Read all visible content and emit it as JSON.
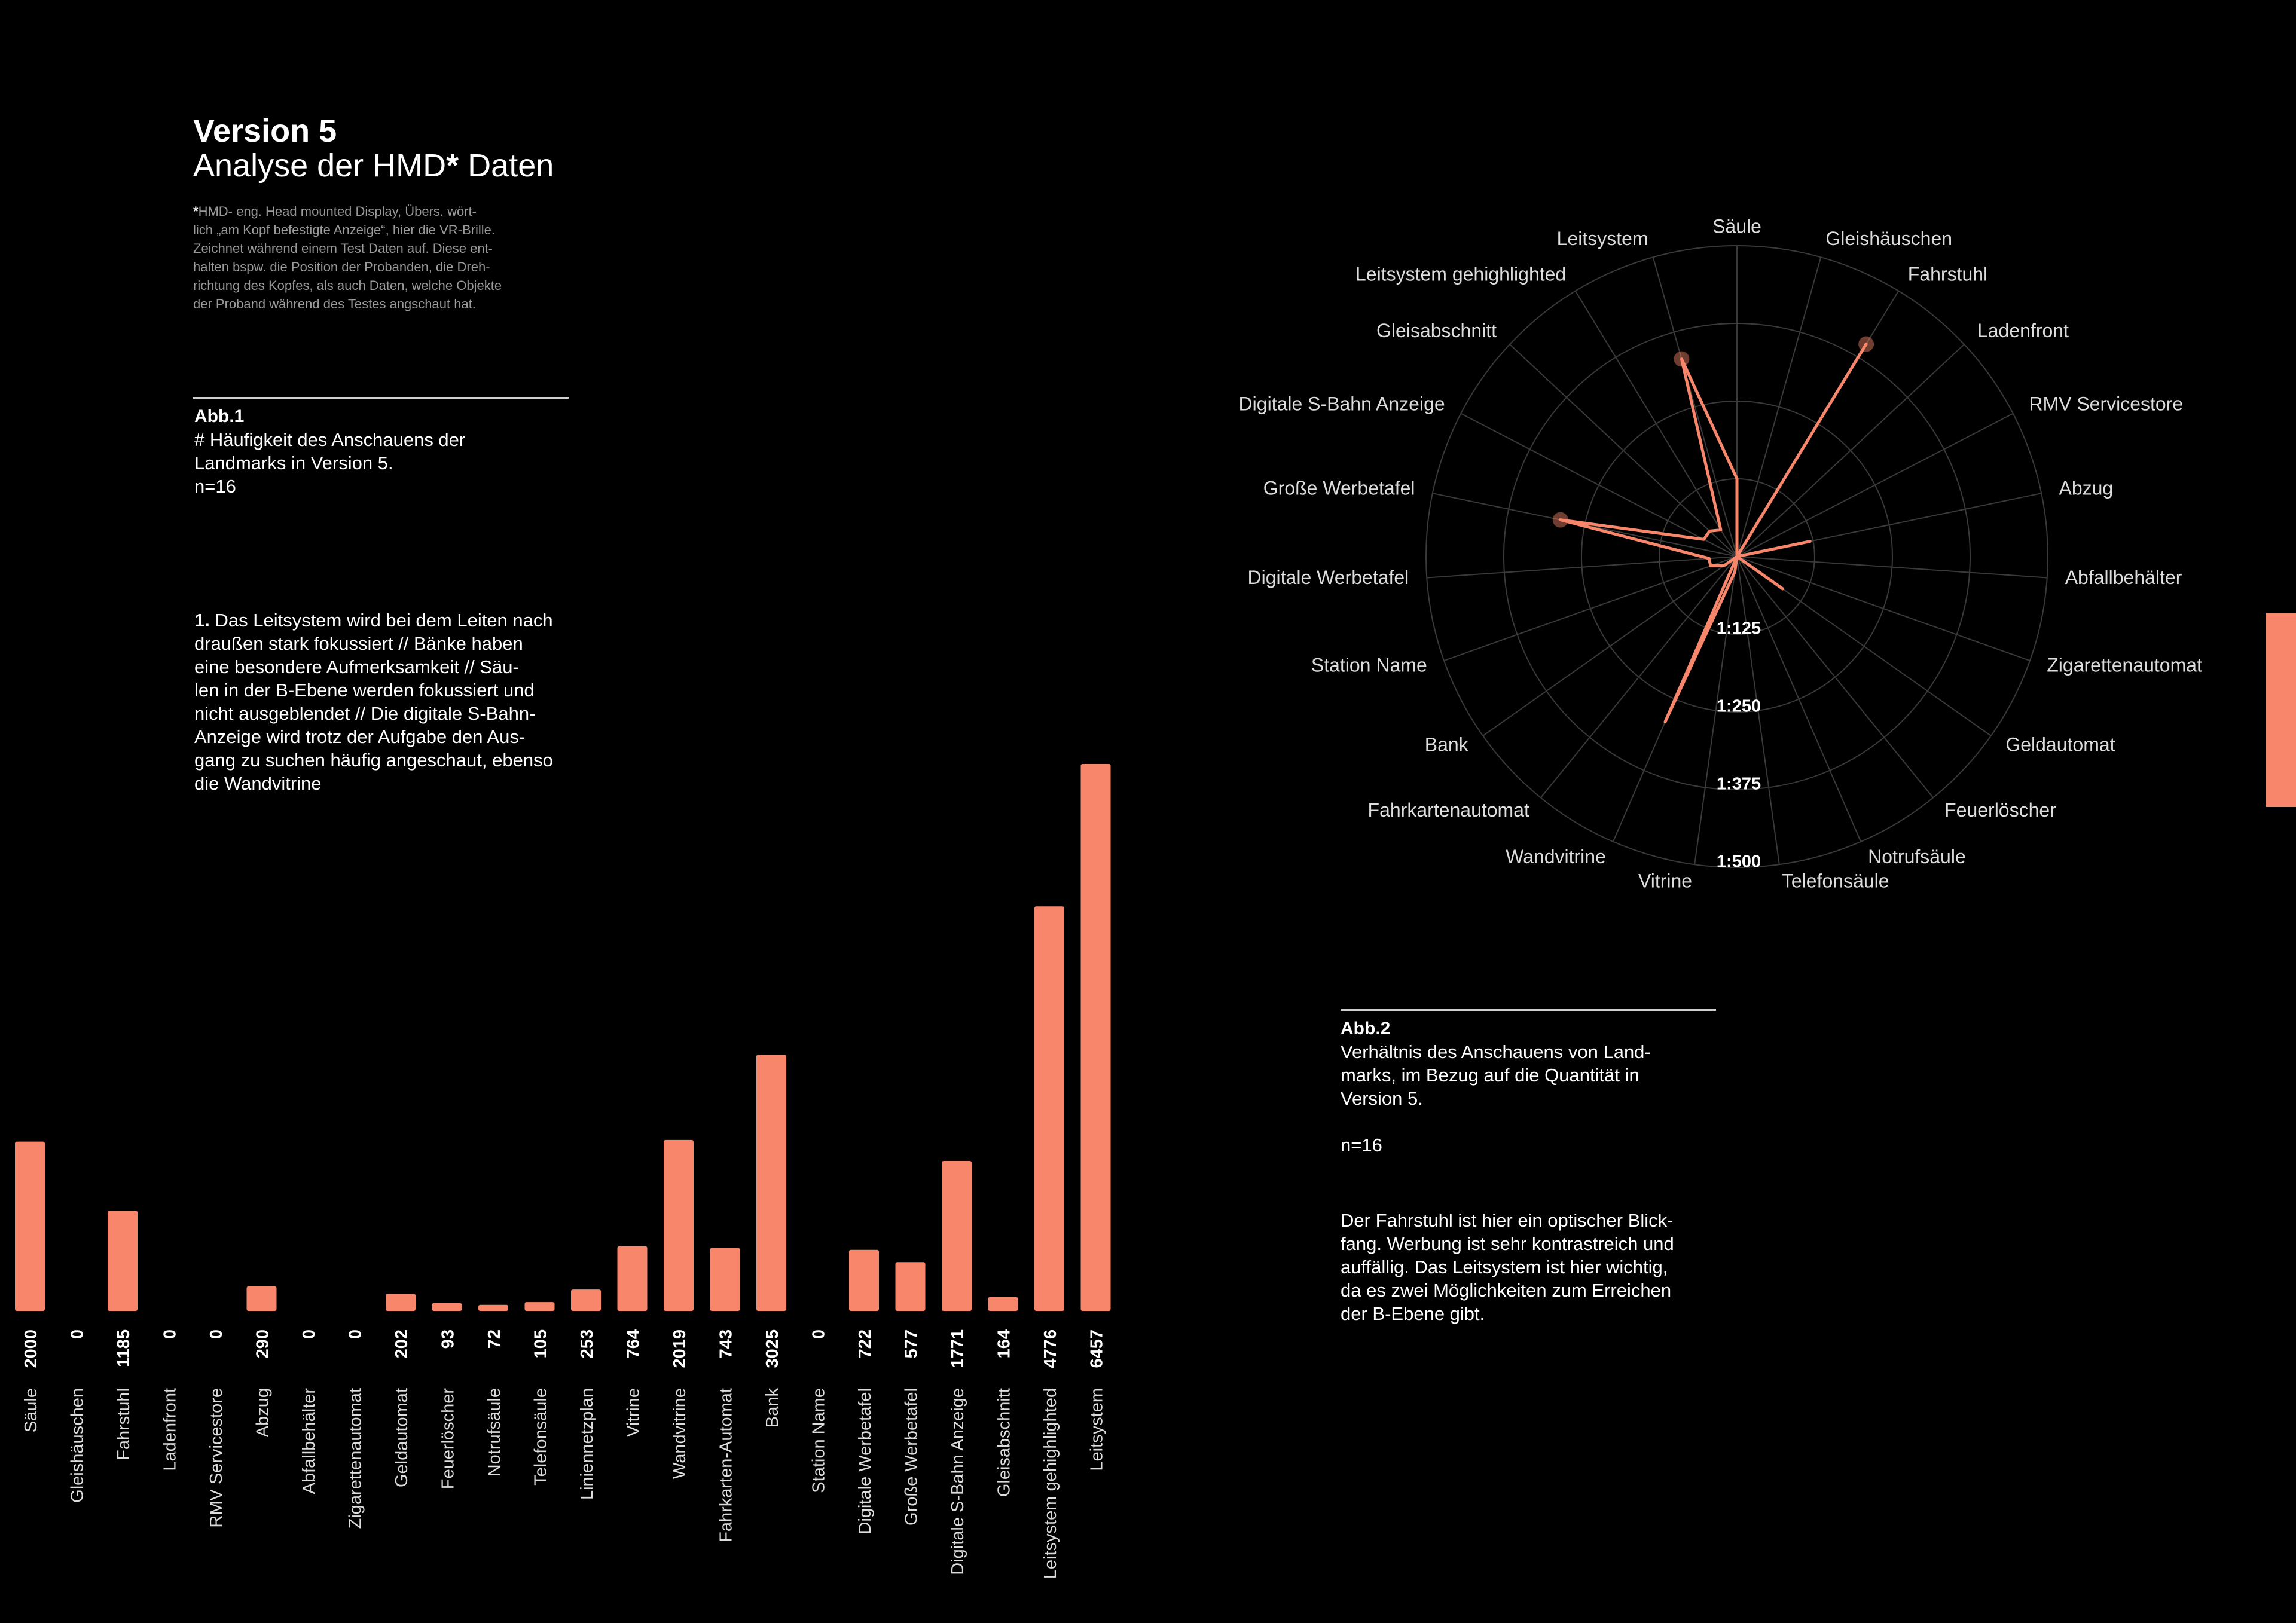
{
  "page": {
    "title": "Version 5",
    "subtitle_pre": "Analyse der HMD",
    "subtitle_star": "*",
    "subtitle_post": " Daten",
    "footnote_star": "*",
    "footnote": "HMD- eng. Head mounted Display, Übers. wört-\nlich „am Kopf befestigte Anzeige“, hier die VR-Brille.\nZeichnet während einem Test Daten auf. Diese ent-\nhalten bspw. die Position der Probanden, die Dreh-\nrichtung des Kopfes, als auch Daten, welche Objekte\nder Proband während des Testes angschaut hat.",
    "abb1_head": "Abb.1",
    "abb1_text": "# Häufigkeit des Anschauens der\nLandmarks in Version 5.\nn=16",
    "note1_num": "1.",
    "note1_text": " Das Leitsystem wird bei dem Leiten nach\ndraußen stark fokussiert // Bänke haben\neine besondere Aufmerksamkeit // Säu-\nlen in der B-Ebene werden fokussiert und\nnicht ausgeblendet // Die digitale S-Bahn-\nAnzeige wird trotz der Aufgabe den Aus-\ngang zu suchen häufig angeschaut, ebenso\ndie Wandvitrine",
    "abb2_head": "Abb.2",
    "abb2_text": "Verhältnis des Anschauens von Land-\nmarks, im Bezug auf die Quantität in\nVersion 5.",
    "abb2_n": "n=16",
    "abb2_note": "Der Fahrstuhl ist hier ein optischer Blick-\nfang. Werbung ist sehr kontrastreich und\nauffällig. Das Leitsystem ist hier wichtig,\nda es zwei Möglichkeiten zum Erreichen\nder B-Ebene gibt."
  },
  "colors": {
    "accent": "#f7866a",
    "background": "#000000",
    "grid": "#3a3a3a",
    "text": "#ffffff",
    "muted": "#9a9a9a"
  },
  "chart_data": [
    {
      "type": "bar",
      "categories": [
        "Säule",
        "Gleishäuschen",
        "Fahrstuhl",
        "Ladenfront",
        "RMV Servicestore",
        "Abzug",
        "Abfallbehälter",
        "Zigarettenautomat",
        "Geldautomat",
        "Feuerlöscher",
        "Notrufsäule",
        "Telefonsäule",
        "Liniennetzplan",
        "Vitrine",
        "Wandvitrine",
        "Fahrkarten-Automat",
        "Bank",
        "Station Name",
        "Digitale Werbetafel",
        "Große Werbetafel",
        "Digitale S-Bahn Anzeige",
        "Gleisabschnitt",
        "Leitsystem gehighlighted",
        "Leitsystem"
      ],
      "values": [
        2000,
        0,
        1185,
        0,
        0,
        290,
        0,
        0,
        202,
        93,
        72,
        105,
        253,
        764,
        2019,
        743,
        3025,
        0,
        722,
        577,
        1771,
        164,
        4776,
        6457
      ],
      "ylim": [
        0,
        6457
      ]
    },
    {
      "type": "radar",
      "categories": [
        "Säule",
        "Gleishäuschen",
        "Fahrstuhl",
        "Ladenfront",
        "RMV Servicestore",
        "Abzug",
        "Abfallbehälter",
        "Zigarettenautomat",
        "Geldautomat",
        "Feuerlöscher",
        "Notrufsäule",
        "Telefonsäule",
        "Vitrine",
        "Wandvitrine",
        "Fahrkartenautomat",
        "Bank",
        "Station Name",
        "Digitale Werbetafel",
        "Große Werbetafel",
        "Digitale S-Bahn Anzeige",
        "Gleisabschnitt",
        "Leitsystem gehighlighted",
        "Leitsystem"
      ],
      "values": [
        125,
        0,
        400,
        0,
        0,
        120,
        0,
        0,
        90,
        0,
        0,
        0,
        25,
        290,
        0,
        25,
        45,
        45,
        290,
        60,
        60,
        50,
        330
      ],
      "ring_labels": [
        "1:125",
        "1:250",
        "1:375",
        "1:500"
      ],
      "rmax": 500,
      "highlighted": [
        "Fahrstuhl",
        "Große Werbetafel",
        "Leitsystem"
      ]
    }
  ]
}
